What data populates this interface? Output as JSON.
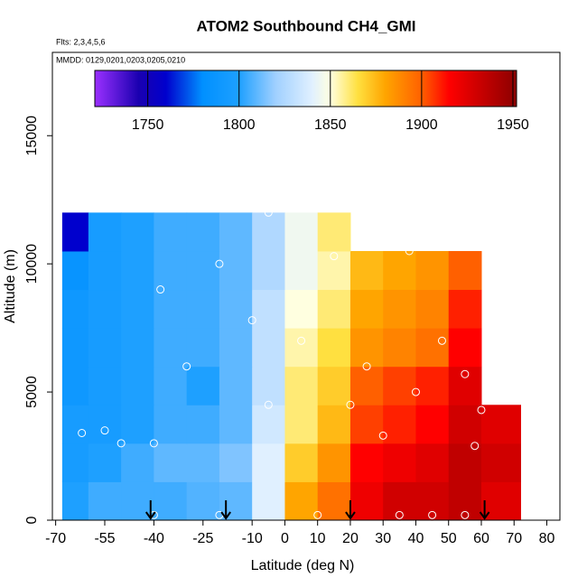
{
  "chart_data": {
    "type": "heatmap",
    "title": "ATOM2 Southbound CH4_GMI",
    "subtitle": "Flts: 2,3,4,5,6",
    "annotation": "MMDD: 0129,0201,0203,0205,0210",
    "x_label": "Latitude (deg N)",
    "y_label": "Altitude (m)",
    "xlim": [
      -71,
      84
    ],
    "ylim": [
      0,
      18250
    ],
    "xticks": [
      -70,
      -55,
      -40,
      -25,
      -10,
      0,
      10,
      20,
      30,
      40,
      50,
      60,
      70,
      80
    ],
    "yticks": [
      0,
      5000,
      10000,
      15000
    ],
    "x_edges": [
      -68,
      -60,
      -50,
      -40,
      -30,
      -20,
      -10,
      0,
      10,
      20,
      30,
      40,
      50,
      60,
      72
    ],
    "y_edges": [
      0,
      1500,
      3000,
      4500,
      6000,
      7500,
      9000,
      10500,
      12000
    ],
    "values": [
      [
        1800,
        1805,
        1805,
        1805,
        1808,
        1810,
        1840,
        1880,
        1895,
        1920,
        1930,
        1930,
        1935,
        1925
      ],
      [
        1795,
        1800,
        1805,
        1810,
        1810,
        1815,
        1840,
        1870,
        1885,
        1915,
        1920,
        1925,
        1935,
        1930
      ],
      [
        1795,
        1795,
        1800,
        1805,
        1805,
        1810,
        1835,
        1860,
        1875,
        1905,
        1910,
        1915,
        1930,
        1925
      ],
      [
        1790,
        1795,
        1800,
        1805,
        1800,
        1810,
        1830,
        1860,
        1870,
        1900,
        1905,
        1910,
        1925,
        null
      ],
      [
        1790,
        1795,
        1800,
        1805,
        1805,
        1810,
        1830,
        1855,
        1865,
        1885,
        1890,
        1895,
        1915,
        null
      ],
      [
        1790,
        1795,
        1800,
        1805,
        1805,
        1810,
        1830,
        1850,
        1860,
        1880,
        1885,
        1890,
        1910,
        null
      ],
      [
        1785,
        1795,
        1800,
        1805,
        1805,
        1810,
        1825,
        1845,
        1855,
        1875,
        1880,
        1885,
        1900,
        null
      ],
      [
        1760,
        1795,
        1800,
        1805,
        1805,
        1810,
        1825,
        1845,
        1860,
        null,
        null,
        null,
        null,
        null
      ]
    ],
    "colorbar": {
      "lim": [
        1721,
        1952
      ],
      "ticks": [
        1750,
        1800,
        1850,
        1900,
        1950
      ],
      "colorscale": [
        [
          1721,
          "#9b30ff"
        ],
        [
          1745,
          "#1a00b0"
        ],
        [
          1760,
          "#0000cd"
        ],
        [
          1780,
          "#0090ff"
        ],
        [
          1800,
          "#1ea0ff"
        ],
        [
          1820,
          "#a0d0ff"
        ],
        [
          1840,
          "#e0f0ff"
        ],
        [
          1850,
          "#ffffe0"
        ],
        [
          1865,
          "#ffe040"
        ],
        [
          1880,
          "#ffa500"
        ],
        [
          1900,
          "#ff6000"
        ],
        [
          1915,
          "#ff0000"
        ],
        [
          1935,
          "#c00000"
        ],
        [
          1952,
          "#8b0000"
        ]
      ]
    },
    "samples": {
      "x": [
        -62,
        -55,
        -50,
        -40,
        -30,
        -38,
        -20,
        -10,
        -5,
        5,
        15,
        20,
        25,
        30,
        38,
        40,
        48,
        55,
        58,
        60,
        -5,
        35,
        45,
        55,
        -40,
        -20,
        10
      ],
      "y": [
        3400,
        3500,
        3000,
        3000,
        6000,
        9000,
        10000,
        7800,
        4500,
        7000,
        10300,
        4500,
        6000,
        3300,
        10500,
        5000,
        7000,
        5700,
        2900,
        4300,
        12000,
        200,
        200,
        200,
        200,
        200,
        200
      ],
      "color": "#ffffff"
    },
    "arrows": [
      -41,
      -18,
      20,
      61
    ]
  }
}
